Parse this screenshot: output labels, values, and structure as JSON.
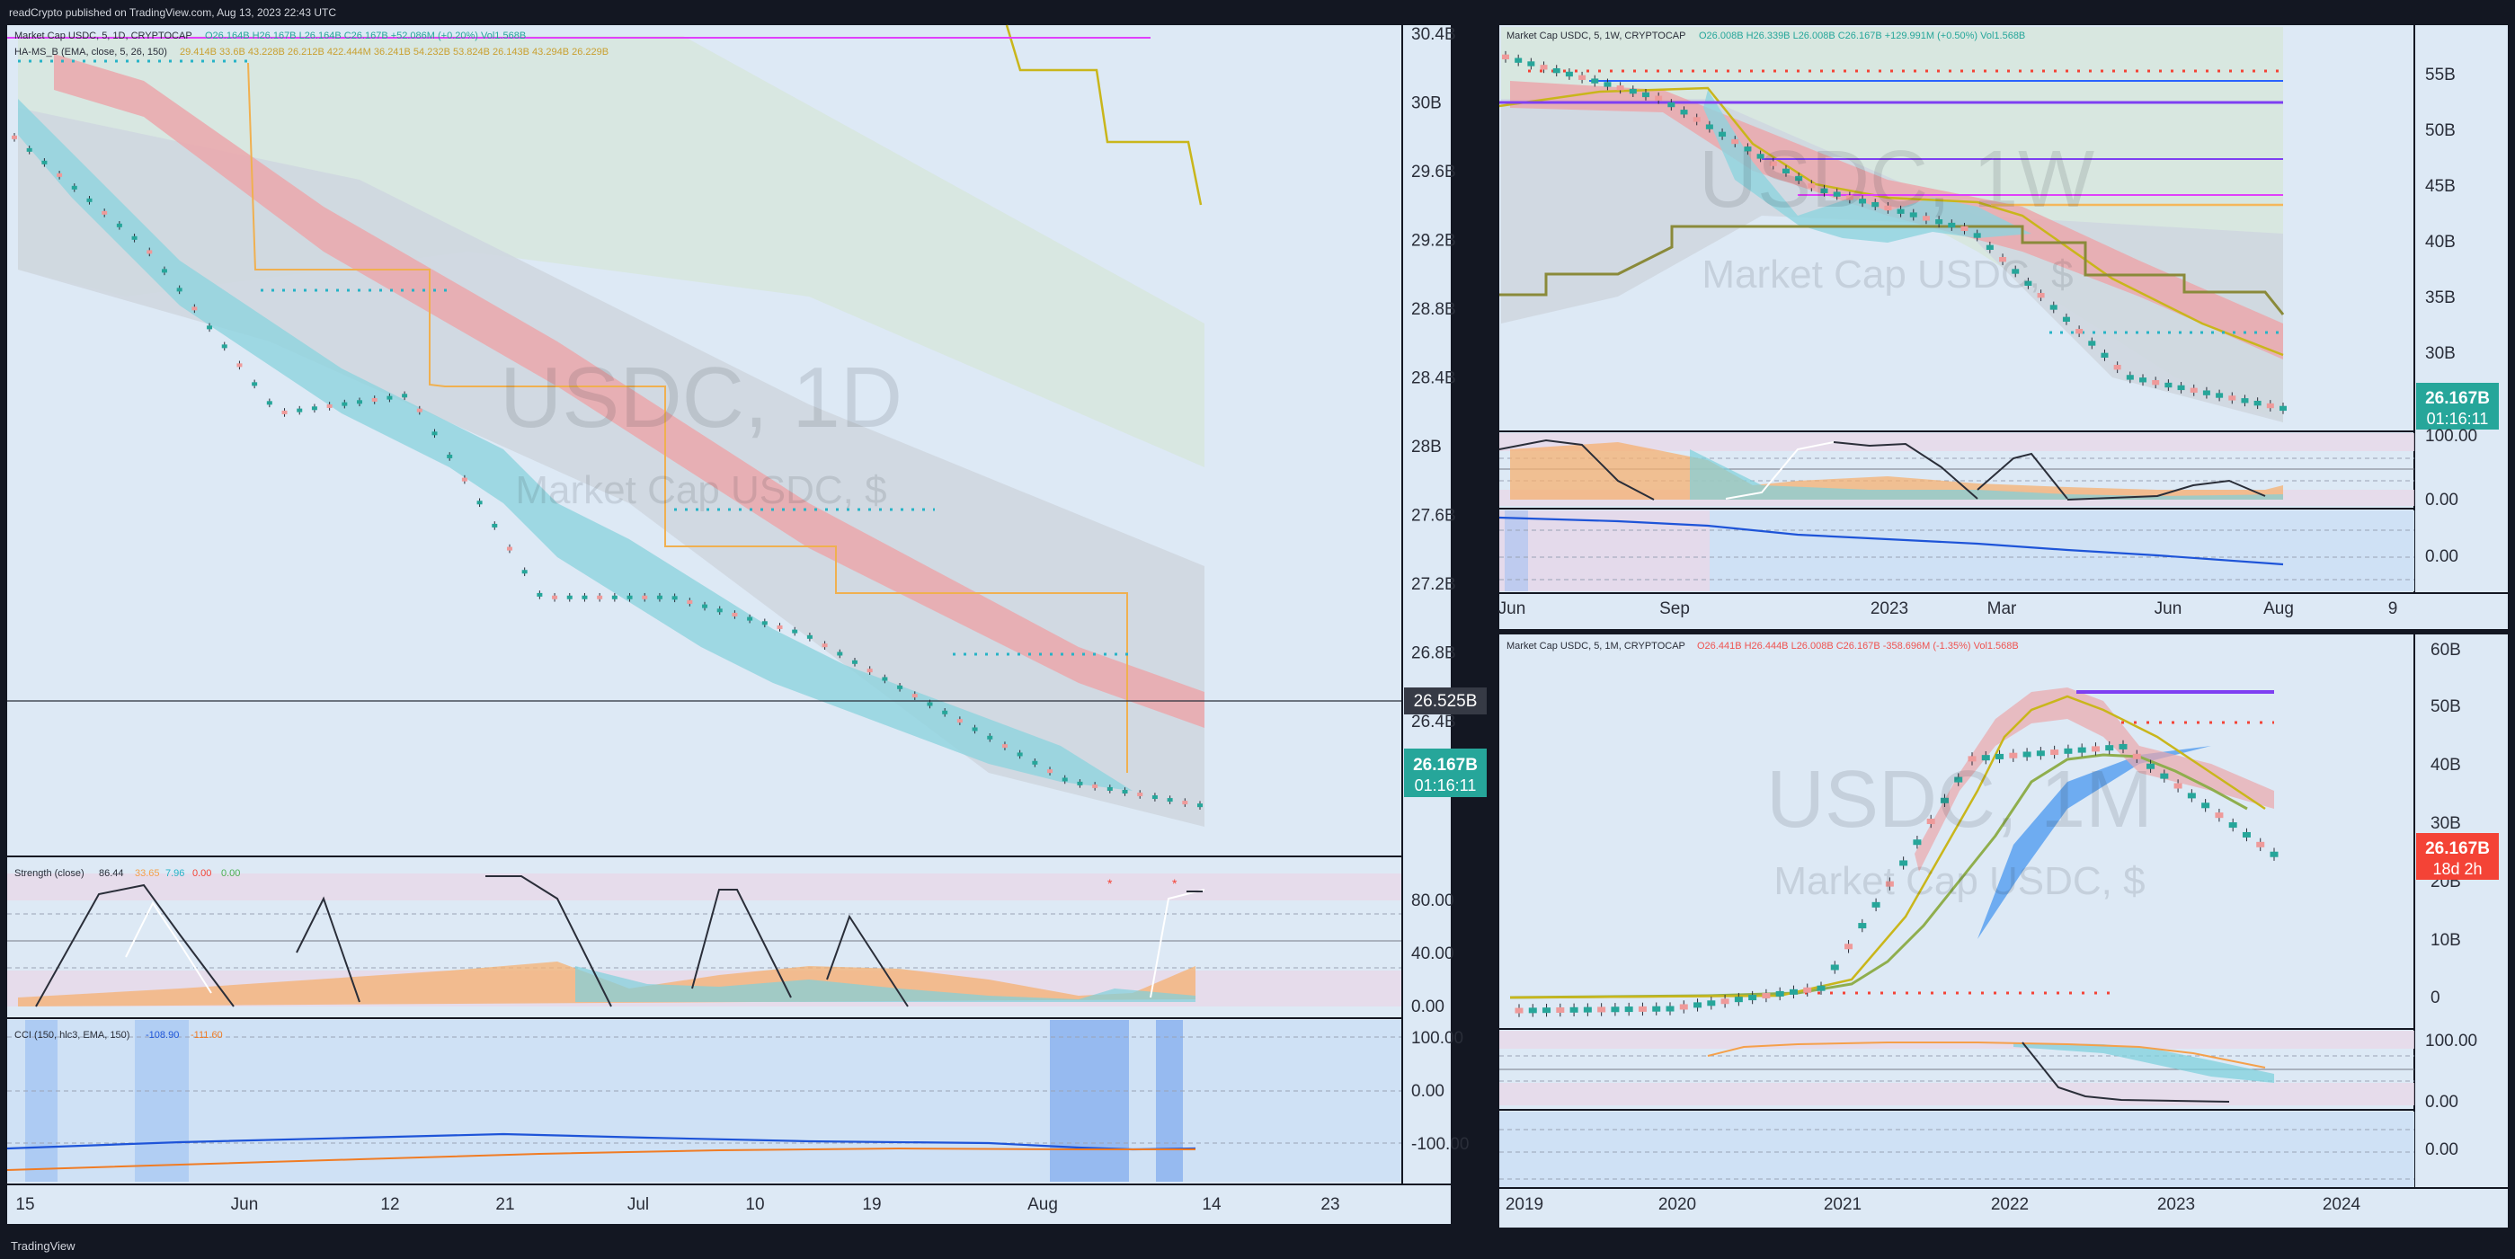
{
  "header": {
    "publisher": "readCrypto published on TradingView.com, Aug 13, 2023 22:43 UTC"
  },
  "footer": {
    "brand": "TradingView"
  },
  "colors": {
    "bg": "#dde9f5",
    "frame": "#131722",
    "ema_fast": "#4dd0e1",
    "ema_slow": "#ef9a9a",
    "price_label": "#26a69a",
    "price_label_red": "#f44336",
    "hlevel": "#2a2e39"
  },
  "daily": {
    "legend_main": "Market Cap USDC, 5, 1D, CRYPTOCAP",
    "legend_ohlc": "O26.164B  H26.167B  L26.164B  C26.167B  +52.086M (+0.20%)  Vol1.568B",
    "legend_indicator": "HA-MS_B (EMA, close, 5, 26, 150)",
    "legend_indicator_vals": "29.414B  33.6B  43.228B  26.212B  422.444M  36.241B  54.232B  53.824B  26.143B  43.294B  26.229B",
    "watermark_title": "USDC, 1D",
    "watermark_sub": "Market Cap USDC, $",
    "price_axis": [
      "30.4B",
      "30B",
      "29.6B",
      "29.2B",
      "28.8B",
      "28.4B",
      "28B",
      "27.6B",
      "27.2B",
      "26.8B",
      "26.4B"
    ],
    "hline_label": "26.525B",
    "last_price": "26.167B",
    "countdown": "01:16:11",
    "time_axis": [
      "15",
      "Jun",
      "12",
      "21",
      "Jul",
      "10",
      "19",
      "Aug",
      "14",
      "23"
    ],
    "strength_legend": "Strength (close)",
    "strength_vals": [
      "86.44",
      "33.65",
      "7.96",
      "0.00",
      "0.00"
    ],
    "strength_axis": [
      "80.00",
      "40.00",
      "0.00"
    ],
    "cci_legend": "CCI (150, hlc3, EMA, 150)",
    "cci_vals": [
      "-108.90",
      "-111.60"
    ],
    "cci_axis": [
      "100.00",
      "0.00",
      "-100.00"
    ]
  },
  "weekly": {
    "legend_main": "Market Cap USDC, 5, 1W, CRYPTOCAP",
    "legend_ohlc": "O26.008B  H26.339B  L26.008B  C26.167B  +129.991M (+0.50%)  Vol1.568B",
    "watermark_title": "USDC, 1W",
    "watermark_sub": "Market Cap USDC, $",
    "price_axis": [
      "55B",
      "50B",
      "45B",
      "40B",
      "35B",
      "30B"
    ],
    "last_price": "26.167B",
    "countdown": "01:16:11",
    "strength_axis": [
      "100.00",
      "0.00"
    ],
    "cci_axis": [
      "0.00"
    ],
    "time_axis": [
      "Jun",
      "Sep",
      "2023",
      "Mar",
      "Jun",
      "Aug",
      "9"
    ]
  },
  "monthly": {
    "legend_main": "Market Cap USDC, 5, 1M, CRYPTOCAP",
    "legend_ohlc": "O26.441B  H26.444B  L26.008B  C26.167B  -358.696M (-1.35%)  Vol1.568B",
    "watermark_title": "USDC, 1M",
    "watermark_sub": "Market Cap USDC, $",
    "price_axis": [
      "60B",
      "50B",
      "40B",
      "30B",
      "20B",
      "10B",
      "0"
    ],
    "last_price": "26.167B",
    "countdown": "18d 2h",
    "strength_axis": [
      "100.00",
      "0.00"
    ],
    "cci_axis": [
      "0.00"
    ],
    "time_axis": [
      "2019",
      "2020",
      "2021",
      "2022",
      "2023",
      "2024"
    ]
  },
  "chart_data": [
    {
      "type": "line",
      "title": "Market Cap USDC, 1D",
      "x": [
        "May 15",
        "Jun 1",
        "Jun 12",
        "Jun 21",
        "Jul 1",
        "Jul 10",
        "Jul 19",
        "Aug 1",
        "Aug 10",
        "Aug 13"
      ],
      "series": [
        {
          "values": [
            29.8,
            29.2,
            28.3,
            28.4,
            27.3,
            27.3,
            27.1,
            26.7,
            26.3,
            26.17
          ]
        }
      ],
      "ylim": [
        26.2,
        30.4
      ]
    },
    {
      "type": "line",
      "title": "Market Cap USDC, 1W",
      "x": [
        "Jun 2022",
        "Sep 2022",
        "Dec 2022",
        "Mar 2023",
        "Jun 2023",
        "Aug 2023"
      ],
      "series": [
        {
          "values": [
            55.5,
            52.0,
            44.5,
            41.0,
            28.8,
            26.17
          ]
        }
      ],
      "ylim": [
        25,
        58
      ]
    },
    {
      "type": "line",
      "title": "Market Cap USDC, 1M",
      "x": [
        "2019",
        "2020",
        "2021",
        "2022",
        "2023",
        "2023-08"
      ],
      "series": [
        {
          "values": [
            0.3,
            0.6,
            4.0,
            42.0,
            44.0,
            26.17
          ]
        }
      ],
      "ylim": [
        -2,
        62
      ]
    }
  ]
}
